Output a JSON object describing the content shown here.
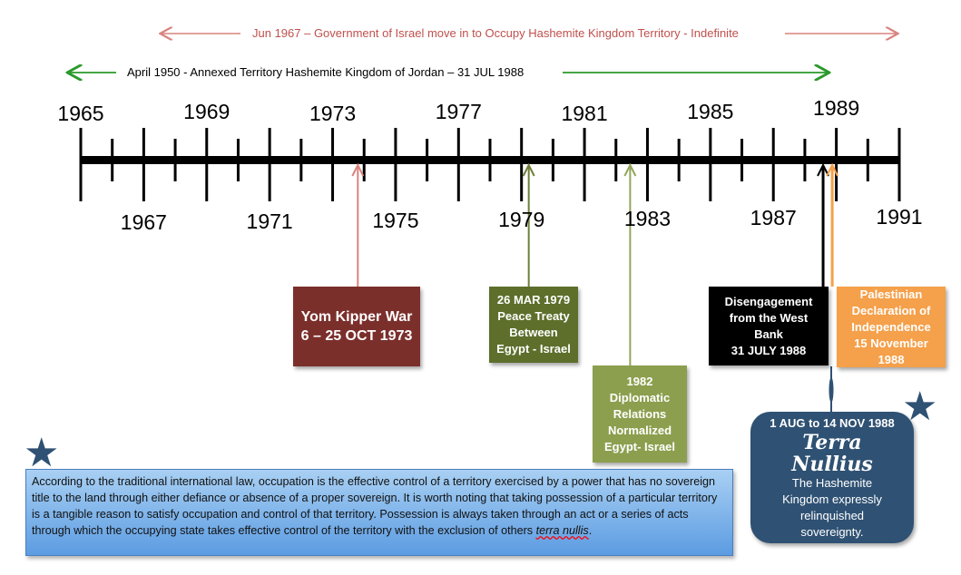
{
  "spans": {
    "occupation": {
      "label": "Jun 1967 – Government of Israel move in to Occupy Hashemite Kingdom Territory - Indefinite",
      "color": "#c0504d"
    },
    "annexation": {
      "label": "April 1950 - Annexed Territory Hashemite Kingdom of Jordan – 31 JUL 1988",
      "color": "#2a9a2a"
    }
  },
  "timeline": {
    "start": 1965,
    "end": 1991,
    "labels_above": [
      "1965",
      "1969",
      "1973",
      "1977",
      "1981",
      "1985",
      "1989"
    ],
    "labels_below": [
      "1967",
      "1971",
      "1975",
      "1979",
      "1983",
      "1987",
      "1991"
    ]
  },
  "events": [
    {
      "lines": [
        "Yom Kipper War",
        "6 – 25 OCT 1973"
      ],
      "color": "#7b2f2b",
      "arrow_color": "#d9847f",
      "year": 1973.8
    },
    {
      "lines": [
        "26 MAR 1979",
        "Peace Treaty",
        "Between",
        "Egypt - Israel"
      ],
      "color": "#5d6f2b",
      "arrow_color": "#6e7f3a",
      "year": 1979.23
    },
    {
      "lines": [
        "1982",
        "Diplomatic",
        "Relations",
        "Normalized",
        "Egypt- Israel"
      ],
      "color": "#8c9f4e",
      "arrow_color": "#93a65a",
      "year": 1982.45
    },
    {
      "lines": [
        "Disengagement",
        "from the West",
        "Bank",
        "31 JULY 1988"
      ],
      "color": "#000000",
      "arrow_color": "#000000",
      "year": 1988.58
    },
    {
      "lines": [
        "Palestinian",
        "Declaration of",
        "Independence",
        "15 November",
        "1988"
      ],
      "color": "#f5a04a",
      "arrow_color": "#f5a04a",
      "year": 1988.87
    }
  ],
  "terra": {
    "date": "1 AUG to 14 NOV 1988",
    "title1": "Terra",
    "title2": "Nullius",
    "lines": [
      "The Hashemite",
      "Kingdom expressly",
      "relinquished",
      "sovereignty."
    ],
    "color": "#2f5173"
  },
  "note": {
    "text": "According to the traditional international law, occupation is the effective control of a territory exercised by a power that has no sovereign title to the land through either defiance or absence of a proper sovereign. It is worth noting that taking possession of a particular territory is a tangible reason to satisfy occupation and control of that territory. Possession is always taken through an act or a series of acts through which the occupying state takes effective control of the territory with the exclusion of others ",
    "italic": "terra nullis",
    "end": "."
  }
}
